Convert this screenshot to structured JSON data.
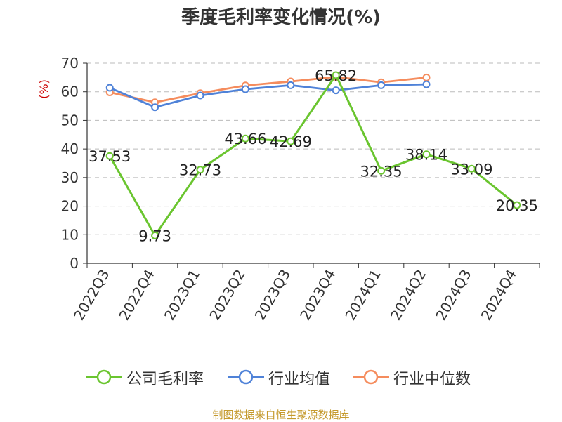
{
  "title": "季度毛利率变化情况(%)",
  "y_unit_label": "(%)",
  "source_note": "制图数据来自恒生聚源数据库",
  "colors": {
    "company": "#6ac52f",
    "industry_avg": "#4f82d8",
    "industry_median": "#f58c5d",
    "axis": "#333333",
    "grid": "#bbbbbb",
    "y_unit": "#cc0000",
    "source": "#c59a2d"
  },
  "chart_data": {
    "type": "line",
    "title": "季度毛利率变化情况(%)",
    "ylabel": "(%)",
    "ylim": [
      0,
      70
    ],
    "yticks": [
      0,
      10,
      20,
      30,
      40,
      50,
      60,
      70
    ],
    "grid": true,
    "legend_position": "bottom",
    "categories": [
      "2022Q3",
      "2022Q4",
      "2023Q1",
      "2023Q2",
      "2023Q3",
      "2023Q4",
      "2024Q1",
      "2024Q2",
      "2024Q3",
      "2024Q4"
    ],
    "series": [
      {
        "name": "公司毛利率",
        "color": "#6ac52f",
        "values": [
          37.53,
          9.73,
          32.73,
          43.66,
          42.69,
          65.82,
          32.35,
          38.14,
          33.09,
          20.35
        ],
        "labels": [
          "37.53",
          "9.73",
          "32.73",
          "43.66",
          "42.69",
          "65.82",
          "32.35",
          "38.14",
          "33.09",
          "20.35"
        ]
      },
      {
        "name": "行业均值",
        "color": "#4f82d8",
        "values": [
          61.4,
          54.6,
          58.7,
          60.9,
          62.3,
          60.5,
          62.3,
          62.6,
          null,
          null
        ]
      },
      {
        "name": "行业中位数",
        "color": "#f58c5d",
        "values": [
          59.8,
          56.3,
          59.5,
          62.2,
          63.6,
          65.2,
          63.3,
          65.0,
          null,
          null
        ]
      }
    ]
  }
}
